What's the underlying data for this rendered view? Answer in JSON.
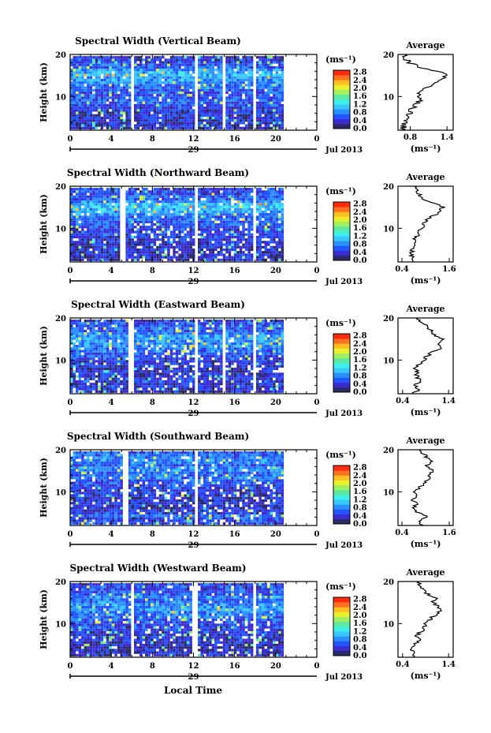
{
  "colorbar": {
    "unit_label": "(ms⁻¹)",
    "tick_labels": [
      "2.8",
      "2.4",
      "2.0",
      "1.6",
      "1.2",
      "0.8",
      "0.4",
      "0.0"
    ],
    "range": [
      0.0,
      2.9
    ],
    "colors": [
      "#2a2a66",
      "#3b2bd0",
      "#2255ff",
      "#2b90ff",
      "#38c8ff",
      "#3ff0e8",
      "#5fe8a0",
      "#9ef060",
      "#e8f030",
      "#ffc020",
      "#ff7020",
      "#ff2a10"
    ]
  },
  "x_axis": {
    "tick_labels": [
      "0",
      "4",
      "8",
      "12",
      "16",
      "20",
      "0"
    ],
    "range": [
      0,
      24
    ],
    "day_label": "29",
    "month_label": "Jul 2013",
    "title": "Local Time"
  },
  "y_axis": {
    "label": "Height (km)",
    "tick_labels": [
      "10",
      "20"
    ],
    "range": [
      2,
      20
    ]
  },
  "chart_data": [
    {
      "type": "heatmap",
      "title": "Spectral Width (Vertical Beam)",
      "x_range": [
        0,
        24
      ],
      "y_range": [
        2,
        20
      ],
      "data_gaps_hours": [
        [
          5.7,
          6.0
        ],
        [
          11.9,
          12.3
        ],
        [
          14.7,
          15.1
        ],
        [
          17.6,
          17.9
        ],
        [
          20.7,
          24.0
        ]
      ],
      "profile": {
        "title": "Average",
        "xlabel": "(ms⁻¹)",
        "x_tick_labels": [
          "0.8",
          "1.4"
        ],
        "xlim": [
          0.6,
          1.5
        ],
        "y_tick_labels": [
          "10",
          "20"
        ],
        "ylim": [
          2,
          20
        ],
        "heights_km": [
          2,
          3,
          4,
          5,
          6,
          7,
          8,
          9,
          10,
          11,
          12,
          13,
          14,
          15,
          16,
          17,
          18,
          19,
          20
        ],
        "values": [
          0.68,
          0.7,
          0.72,
          0.74,
          0.78,
          0.82,
          0.9,
          0.95,
          0.9,
          0.92,
          1.05,
          1.2,
          1.3,
          1.38,
          1.25,
          0.95,
          0.8,
          0.72,
          0.7
        ]
      }
    },
    {
      "type": "heatmap",
      "title": "Spectral Width (Northward Beam)",
      "x_range": [
        0,
        24
      ],
      "y_range": [
        2,
        20
      ],
      "data_gaps_hours": [
        [
          4.8,
          5.2
        ],
        [
          11.9,
          12.3
        ],
        [
          17.6,
          18.0
        ],
        [
          20.7,
          24.0
        ]
      ],
      "profile": {
        "title": "Average",
        "xlabel": "(ms⁻¹)",
        "x_tick_labels": [
          "0.4",
          "1.6"
        ],
        "xlim": [
          0.3,
          1.7
        ],
        "y_tick_labels": [
          "10",
          "20"
        ],
        "ylim": [
          2,
          20
        ],
        "heights_km": [
          2,
          3,
          4,
          5,
          6,
          7,
          8,
          9,
          10,
          11,
          12,
          13,
          14,
          15,
          16,
          17,
          18,
          19,
          20
        ],
        "values": [
          0.65,
          0.7,
          0.62,
          0.68,
          0.72,
          0.7,
          0.78,
          0.82,
          0.9,
          0.95,
          1.05,
          1.2,
          1.35,
          1.45,
          1.2,
          0.95,
          0.85,
          0.78,
          0.7
        ]
      }
    },
    {
      "type": "heatmap",
      "title": "Spectral Width (Eastward Beam)",
      "x_range": [
        0,
        24
      ],
      "y_range": [
        2,
        20
      ],
      "data_gaps_hours": [
        [
          5.5,
          6.0
        ],
        [
          11.9,
          12.3
        ],
        [
          14.6,
          15.0
        ],
        [
          17.6,
          18.0
        ],
        [
          20.7,
          24.0
        ]
      ],
      "profile": {
        "title": "Average",
        "xlabel": "(ms⁻¹)",
        "x_tick_labels": [
          "0.4",
          "1.4"
        ],
        "xlim": [
          0.3,
          1.5
        ],
        "y_tick_labels": [
          "10",
          "20"
        ],
        "ylim": [
          2,
          20
        ],
        "heights_km": [
          2,
          3,
          4,
          5,
          6,
          7,
          8,
          9,
          10,
          11,
          12,
          13,
          14,
          15,
          16,
          17,
          18,
          19,
          20
        ],
        "values": [
          0.62,
          0.75,
          0.65,
          0.8,
          0.7,
          0.72,
          0.68,
          0.75,
          0.85,
          0.95,
          1.05,
          1.25,
          1.2,
          1.3,
          1.1,
          1.0,
          0.95,
          0.8,
          0.72
        ]
      }
    },
    {
      "type": "heatmap",
      "title": "Spectral Width (Southward Beam)",
      "x_range": [
        0,
        24
      ],
      "y_range": [
        2,
        20
      ],
      "data_gaps_hours": [
        [
          5.1,
          5.5
        ],
        [
          11.9,
          12.3
        ],
        [
          20.7,
          24.0
        ]
      ],
      "profile": {
        "title": "Average",
        "xlabel": "(ms⁻¹)",
        "x_tick_labels": [
          "0.4",
          "1.6"
        ],
        "xlim": [
          0.3,
          1.7
        ],
        "y_tick_labels": [
          "10",
          "20"
        ],
        "ylim": [
          2,
          20
        ],
        "heights_km": [
          2,
          3,
          4,
          5,
          6,
          7,
          8,
          9,
          10,
          11,
          12,
          13,
          14,
          15,
          16,
          17,
          18,
          19,
          20
        ],
        "values": [
          0.9,
          0.85,
          1.05,
          0.8,
          0.7,
          0.75,
          0.68,
          0.8,
          0.72,
          0.85,
          0.95,
          1.1,
          1.05,
          1.2,
          1.0,
          1.15,
          1.05,
          0.95,
          0.9
        ]
      }
    },
    {
      "type": "heatmap",
      "title": "Spectral Width (Westward Beam)",
      "x_range": [
        0,
        24
      ],
      "y_range": [
        2,
        20
      ],
      "data_gaps_hours": [
        [
          5.7,
          6.0
        ],
        [
          11.8,
          12.2
        ],
        [
          17.6,
          18.0
        ],
        [
          20.7,
          24.0
        ]
      ],
      "profile": {
        "title": "Average",
        "xlabel": "(ms⁻¹)",
        "x_tick_labels": [
          "0.4",
          "1.4"
        ],
        "xlim": [
          0.3,
          1.5
        ],
        "y_tick_labels": [
          "10",
          "20"
        ],
        "ylim": [
          2,
          20
        ],
        "heights_km": [
          2,
          3,
          4,
          5,
          6,
          7,
          8,
          9,
          10,
          11,
          12,
          13,
          14,
          15,
          16,
          17,
          18,
          19,
          20
        ],
        "values": [
          0.62,
          0.7,
          0.6,
          0.68,
          0.75,
          0.7,
          0.8,
          0.85,
          0.9,
          1.0,
          1.1,
          1.25,
          1.2,
          1.05,
          1.15,
          0.95,
          0.85,
          0.8,
          0.75
        ]
      }
    }
  ]
}
